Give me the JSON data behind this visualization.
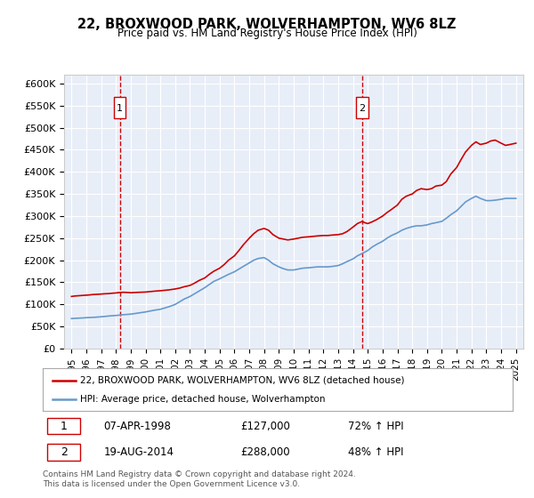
{
  "title1": "22, BROXWOOD PARK, WOLVERHAMPTON, WV6 8LZ",
  "title2": "Price paid vs. HM Land Registry's House Price Index (HPI)",
  "ylabel": "",
  "background_color": "#e8eef8",
  "plot_bg": "#e8eef8",
  "ylim": [
    0,
    620000
  ],
  "yticks": [
    0,
    50000,
    100000,
    150000,
    200000,
    250000,
    300000,
    350000,
    400000,
    450000,
    500000,
    550000,
    600000
  ],
  "ytick_labels": [
    "£0",
    "£50K",
    "£100K",
    "£150K",
    "£200K",
    "£250K",
    "£300K",
    "£350K",
    "£400K",
    "£450K",
    "£500K",
    "£550K",
    "£600K"
  ],
  "xlim_start": 1994.5,
  "xlim_end": 2025.5,
  "xticks": [
    1995,
    1996,
    1997,
    1998,
    1999,
    2000,
    2001,
    2002,
    2003,
    2004,
    2005,
    2006,
    2007,
    2008,
    2009,
    2010,
    2011,
    2012,
    2013,
    2014,
    2015,
    2016,
    2017,
    2018,
    2019,
    2020,
    2021,
    2022,
    2023,
    2024,
    2025
  ],
  "red_line_color": "#cc0000",
  "blue_line_color": "#6699cc",
  "marker1_x": 1998.27,
  "marker1_y": 127000,
  "marker2_x": 2014.63,
  "marker2_y": 288000,
  "legend_label1": "22, BROXWOOD PARK, WOLVERHAMPTON, WV6 8LZ (detached house)",
  "legend_label2": "HPI: Average price, detached house, Wolverhampton",
  "sale1_date": "07-APR-1998",
  "sale1_price": "£127,000",
  "sale1_hpi": "72% ↑ HPI",
  "sale2_date": "19-AUG-2014",
  "sale2_price": "£288,000",
  "sale2_hpi": "48% ↑ HPI",
  "footer": "Contains HM Land Registry data © Crown copyright and database right 2024.\nThis data is licensed under the Open Government Licence v3.0.",
  "red_x": [
    1995.0,
    1995.1,
    1995.2,
    1995.4,
    1995.6,
    1995.8,
    1996.0,
    1996.2,
    1996.5,
    1996.8,
    1997.0,
    1997.2,
    1997.5,
    1997.8,
    1998.0,
    1998.27,
    1998.5,
    1998.8,
    1999.0,
    1999.3,
    1999.6,
    2000.0,
    2000.3,
    2000.6,
    2001.0,
    2001.3,
    2001.6,
    2002.0,
    2002.3,
    2002.6,
    2003.0,
    2003.3,
    2003.6,
    2004.0,
    2004.3,
    2004.6,
    2005.0,
    2005.3,
    2005.6,
    2006.0,
    2006.3,
    2006.6,
    2007.0,
    2007.3,
    2007.6,
    2008.0,
    2008.3,
    2008.6,
    2009.0,
    2009.3,
    2009.6,
    2010.0,
    2010.3,
    2010.6,
    2011.0,
    2011.3,
    2011.6,
    2012.0,
    2012.3,
    2012.6,
    2013.0,
    2013.3,
    2013.6,
    2014.0,
    2014.3,
    2014.63,
    2014.8,
    2015.0,
    2015.3,
    2015.6,
    2016.0,
    2016.3,
    2016.6,
    2017.0,
    2017.3,
    2017.6,
    2018.0,
    2018.3,
    2018.6,
    2019.0,
    2019.3,
    2019.6,
    2020.0,
    2020.3,
    2020.6,
    2021.0,
    2021.3,
    2021.6,
    2022.0,
    2022.3,
    2022.6,
    2023.0,
    2023.3,
    2023.6,
    2024.0,
    2024.3,
    2024.6,
    2025.0
  ],
  "red_y": [
    118000,
    118500,
    119000,
    119500,
    120000,
    120500,
    121000,
    121500,
    122500,
    123000,
    123500,
    124000,
    124500,
    125500,
    126000,
    127000,
    127500,
    127000,
    126500,
    127000,
    127500,
    128000,
    129000,
    130000,
    131000,
    132000,
    133000,
    135000,
    137000,
    140000,
    143000,
    148000,
    154000,
    160000,
    168000,
    175000,
    182000,
    190000,
    200000,
    210000,
    222000,
    235000,
    250000,
    260000,
    268000,
    272000,
    268000,
    258000,
    250000,
    248000,
    246000,
    248000,
    250000,
    252000,
    253000,
    254000,
    255000,
    256000,
    256000,
    257000,
    258000,
    260000,
    265000,
    275000,
    283000,
    288000,
    285000,
    283000,
    287000,
    292000,
    300000,
    308000,
    315000,
    325000,
    338000,
    345000,
    350000,
    358000,
    362000,
    360000,
    362000,
    368000,
    370000,
    378000,
    395000,
    410000,
    428000,
    445000,
    460000,
    468000,
    462000,
    465000,
    470000,
    472000,
    465000,
    460000,
    462000,
    465000
  ],
  "blue_x": [
    1995.0,
    1995.2,
    1995.5,
    1995.8,
    1996.0,
    1996.3,
    1996.6,
    1997.0,
    1997.3,
    1997.6,
    1998.0,
    1998.3,
    1998.6,
    1999.0,
    1999.3,
    1999.6,
    2000.0,
    2000.3,
    2000.6,
    2001.0,
    2001.3,
    2001.6,
    2002.0,
    2002.3,
    2002.6,
    2003.0,
    2003.3,
    2003.6,
    2004.0,
    2004.3,
    2004.6,
    2005.0,
    2005.3,
    2005.6,
    2006.0,
    2006.3,
    2006.6,
    2007.0,
    2007.3,
    2007.6,
    2008.0,
    2008.3,
    2008.6,
    2009.0,
    2009.3,
    2009.6,
    2010.0,
    2010.3,
    2010.6,
    2011.0,
    2011.3,
    2011.6,
    2012.0,
    2012.3,
    2012.6,
    2013.0,
    2013.3,
    2013.6,
    2014.0,
    2014.3,
    2014.6,
    2015.0,
    2015.3,
    2015.6,
    2016.0,
    2016.3,
    2016.6,
    2017.0,
    2017.3,
    2017.6,
    2018.0,
    2018.3,
    2018.6,
    2019.0,
    2019.3,
    2019.6,
    2020.0,
    2020.3,
    2020.6,
    2021.0,
    2021.3,
    2021.6,
    2022.0,
    2022.3,
    2022.6,
    2023.0,
    2023.3,
    2023.6,
    2024.0,
    2024.3,
    2024.6,
    2025.0
  ],
  "blue_y": [
    68000,
    68500,
    69000,
    69500,
    70000,
    70500,
    71000,
    72000,
    73000,
    74000,
    75000,
    76000,
    77000,
    78000,
    79500,
    81000,
    83000,
    85000,
    87000,
    89000,
    92000,
    95000,
    100000,
    106000,
    112000,
    118000,
    124000,
    130000,
    138000,
    145000,
    152000,
    158000,
    163000,
    168000,
    174000,
    180000,
    186000,
    194000,
    200000,
    204000,
    206000,
    200000,
    192000,
    185000,
    181000,
    178000,
    178000,
    180000,
    182000,
    183000,
    184000,
    185000,
    185000,
    185000,
    186000,
    188000,
    192000,
    197000,
    203000,
    210000,
    215000,
    222000,
    230000,
    236000,
    243000,
    250000,
    256000,
    262000,
    268000,
    272000,
    276000,
    278000,
    278000,
    280000,
    283000,
    285000,
    288000,
    295000,
    303000,
    312000,
    322000,
    332000,
    340000,
    345000,
    340000,
    335000,
    335000,
    336000,
    338000,
    340000,
    340000,
    340000
  ]
}
